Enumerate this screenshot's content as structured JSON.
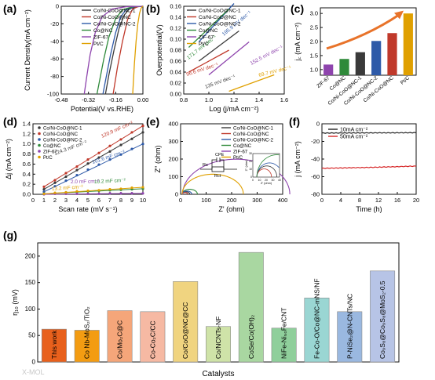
{
  "palette": {
    "CoNiCoO_NC_1": "#3a3a3a",
    "CoNiCoO_NC": "#c0392b",
    "CoNiCoO_NC_2": "#2e5aa8",
    "Co_NC": "#2f8a3a",
    "ZIF67": "#8e44ad",
    "PtC": "#e0a000",
    "accent_arrow": "#e8732a",
    "g_edge": "#8a8a8a"
  },
  "watermark": "X-MOL",
  "chart_data": [
    {
      "panel": "a",
      "type": "line",
      "xlabel": "Potential(V vs.RHE)",
      "ylabel": "Current Density(mA cm⁻²)",
      "xlim": [
        -0.48,
        0.0
      ],
      "ylim": [
        -100,
        0
      ],
      "xticks": [
        "-0.48",
        "-0.32",
        "-0.16",
        "0.00"
      ],
      "yticks": [
        "-100",
        "-80",
        "-60",
        "-40",
        "-20",
        "0"
      ],
      "legend_position": "top-right",
      "series": [
        {
          "name": "Co/Ni-CoO@NC-1",
          "color": "#3a3a3a",
          "points": [
            [
              0,
              0
            ],
            [
              -0.04,
              -0.5
            ],
            [
              -0.08,
              -3
            ],
            [
              -0.11,
              -10
            ],
            [
              -0.14,
              -25
            ],
            [
              -0.17,
              -50
            ],
            [
              -0.2,
              -78
            ],
            [
              -0.22,
              -100
            ]
          ]
        },
        {
          "name": "Co/Ni-CoO@NC",
          "color": "#c0392b",
          "points": [
            [
              0,
              0
            ],
            [
              -0.03,
              -0.5
            ],
            [
              -0.06,
              -3
            ],
            [
              -0.09,
              -15
            ],
            [
              -0.12,
              -40
            ],
            [
              -0.15,
              -70
            ],
            [
              -0.175,
              -100
            ]
          ]
        },
        {
          "name": "Co/Ni-CoO@NC-2",
          "color": "#2e5aa8",
          "points": [
            [
              0,
              0
            ],
            [
              -0.05,
              -0.5
            ],
            [
              -0.1,
              -4
            ],
            [
              -0.13,
              -12
            ],
            [
              -0.16,
              -30
            ],
            [
              -0.19,
              -55
            ],
            [
              -0.22,
              -85
            ],
            [
              -0.235,
              -100
            ]
          ]
        },
        {
          "name": "Co@NC",
          "color": "#2f8a3a",
          "points": [
            [
              0,
              0
            ],
            [
              -0.06,
              -0.5
            ],
            [
              -0.12,
              -4
            ],
            [
              -0.16,
              -14
            ],
            [
              -0.2,
              -35
            ],
            [
              -0.23,
              -60
            ],
            [
              -0.26,
              -90
            ],
            [
              -0.27,
              -100
            ]
          ]
        },
        {
          "name": "ZIF-67",
          "color": "#8e44ad",
          "points": [
            [
              0,
              0
            ],
            [
              -0.1,
              -0.5
            ],
            [
              -0.18,
              -3
            ],
            [
              -0.24,
              -12
            ],
            [
              -0.28,
              -30
            ],
            [
              -0.31,
              -55
            ],
            [
              -0.33,
              -80
            ],
            [
              -0.345,
              -100
            ]
          ]
        },
        {
          "name": "Pt/C",
          "color": "#e0a000",
          "points": [
            [
              0,
              0
            ],
            [
              -0.01,
              -2
            ],
            [
              -0.02,
              -8
            ],
            [
              -0.03,
              -20
            ],
            [
              -0.04,
              -40
            ],
            [
              -0.05,
              -65
            ],
            [
              -0.06,
              -100
            ]
          ]
        }
      ]
    },
    {
      "panel": "b",
      "type": "line",
      "xlabel": "Log (j/mA cm⁻²)",
      "ylabel": "Overpotential(V)",
      "xlim": [
        0.6,
        1.6
      ],
      "ylim": [
        0.0,
        0.16
      ],
      "xticks": [
        "0.8",
        "1.0",
        "1.2",
        "1.4",
        "1.6"
      ],
      "yticks": [
        "0.00",
        "0.02",
        "0.04",
        "0.06",
        "0.08",
        "0.10",
        "0.12",
        "0.14",
        "0.16"
      ],
      "legend_position": "top-left",
      "series": [
        {
          "name": "Co/Ni-CoO@NC-1",
          "color": "#3a3a3a",
          "points": [
            [
              0.75,
              0.06
            ],
            [
              1.15,
              0.115
            ]
          ],
          "label": "135 mV dec⁻¹"
        },
        {
          "name": "Co/Ni-CoO@NC",
          "color": "#c0392b",
          "points": [
            [
              0.65,
              0.04
            ],
            [
              1.05,
              0.08
            ]
          ],
          "label": "96.6 mV dec⁻¹"
        },
        {
          "name": "Co/Ni-CoO@NC-2",
          "color": "#2e5aa8",
          "points": [
            [
              0.75,
              0.095
            ],
            [
              1.1,
              0.165
            ]
          ],
          "label": "195.9 mV dec⁻¹"
        },
        {
          "name": "Co@NC",
          "color": "#2f8a3a",
          "points": [
            [
              0.65,
              0.085
            ],
            [
              1.05,
              0.155
            ]
          ],
          "label": "171.7 mV dec⁻¹"
        },
        {
          "name": "ZIF-67",
          "color": "#8e44ad",
          "points": [
            [
              0.85,
              0.035
            ],
            [
              1.25,
              0.095
            ]
          ],
          "label": "152.5 mV dec⁻¹"
        },
        {
          "name": "Pt/C",
          "color": "#e0a000",
          "points": [
            [
              1.05,
              0.005
            ],
            [
              1.5,
              0.035
            ]
          ],
          "label": "69.7 mV dec⁻¹"
        }
      ]
    },
    {
      "panel": "c",
      "type": "bar",
      "ylabel": "j꜀ (mA cm⁻²)",
      "ylim": [
        0.8,
        3.2
      ],
      "yticks": [
        "1.0",
        "1.5",
        "2.0",
        "2.5",
        "3.0"
      ],
      "categories": [
        "ZIF-67",
        "Co@NC",
        "Co/Ni-CoO@NC-1",
        "Co/Ni-CoO@NC-2",
        "Co/Ni-CoO@NC",
        "Pt/C"
      ],
      "values": [
        1.18,
        1.38,
        1.62,
        2.02,
        2.3,
        3.0
      ],
      "colors": [
        "#8e44ad",
        "#2f8a3a",
        "#3a3a3a",
        "#2e5aa8",
        "#c0392b",
        "#e0a000"
      ]
    },
    {
      "panel": "d",
      "type": "scatter",
      "xlabel": "Scan rate (mV s⁻¹)",
      "ylabel": "Δj (mA cm⁻²)",
      "xlim": [
        0,
        10
      ],
      "ylim": [
        0,
        1.4
      ],
      "xticks": [
        "0",
        "1",
        "2",
        "3",
        "4",
        "5",
        "6",
        "7",
        "8",
        "9",
        "10"
      ],
      "yticks": [
        "0.0",
        "0.2",
        "0.4",
        "0.6",
        "0.8",
        "1.0",
        "1.2",
        "1.4"
      ],
      "x": [
        1,
        2,
        3,
        4,
        5,
        6,
        7,
        8,
        9,
        10
      ],
      "legend_position": "top-left",
      "series": [
        {
          "name": "Co/Ni-CoO@NC-1",
          "color": "#3a3a3a",
          "values": [
            0.1,
            0.23,
            0.35,
            0.48,
            0.61,
            0.73,
            0.85,
            0.98,
            1.1,
            1.23
          ],
          "label": "124.3 mF cm⁻²"
        },
        {
          "name": "Co/Ni-CoO@NC",
          "color": "#c0392b",
          "values": [
            0.15,
            0.28,
            0.42,
            0.55,
            0.69,
            0.82,
            0.96,
            1.09,
            1.23,
            1.36
          ],
          "label": "120.9 mF cm⁻²"
        },
        {
          "name": "Co/Ni-CoO@NC-2",
          "color": "#2e5aa8",
          "values": [
            0.05,
            0.16,
            0.27,
            0.38,
            0.49,
            0.59,
            0.69,
            0.79,
            0.9,
            1.0
          ],
          "label": "101.6 mF cm⁻²"
        },
        {
          "name": "Co@NC",
          "color": "#2f8a3a",
          "values": [
            0.01,
            0.02,
            0.04,
            0.05,
            0.06,
            0.07,
            0.08,
            0.09,
            0.1,
            0.11
          ],
          "label": "10.2 mF cm⁻²"
        },
        {
          "name": "ZIF-67",
          "color": "#8e44ad",
          "values": [
            0.0,
            0.01,
            0.01,
            0.01,
            0.01,
            0.01,
            0.02,
            0.02,
            0.02,
            0.02
          ],
          "label": "2.0 mF cm⁻²"
        },
        {
          "name": "Pt/C",
          "color": "#e0a000",
          "values": [
            0.01,
            0.03,
            0.04,
            0.06,
            0.07,
            0.08,
            0.1,
            0.11,
            0.13,
            0.14
          ],
          "label": "13.2 mF cm⁻²"
        }
      ]
    },
    {
      "panel": "e",
      "type": "line",
      "xlabel": "Z' (ohm)",
      "ylabel": "Z'' (ohm)",
      "xlim": [
        0,
        400
      ],
      "ylim": [
        0,
        400
      ],
      "xticks": [
        "0",
        "100",
        "200",
        "300",
        "400"
      ],
      "yticks": [
        "0",
        "100",
        "200",
        "300",
        "400"
      ],
      "legend_position": "top-right",
      "circuit_labels": [
        "Rs",
        "CPE",
        "Rct"
      ],
      "series": [
        {
          "name": "Co/Ni-CoO@NC-1",
          "color": "#3a3a3a",
          "arc": [
            6,
            30
          ]
        },
        {
          "name": "Co/Ni-CoO@NC",
          "color": "#c0392b",
          "arc": [
            6,
            22
          ]
        },
        {
          "name": "Co/Ni-CoO@NC-2",
          "color": "#2e5aa8",
          "arc": [
            6,
            38
          ]
        },
        {
          "name": "Co@NC",
          "color": "#2f8a3a",
          "arc": [
            6,
            60
          ]
        },
        {
          "name": "ZIF-67",
          "color": "#8e44ad",
          "arc": [
            8,
            420
          ]
        },
        {
          "name": "Pt/C",
          "color": "#e0a000",
          "arc": [
            6,
            240
          ]
        }
      ],
      "inset": {
        "xlabel": "Z' (ohm)",
        "ylabel": "Z'' (ohm)",
        "xticks": [
          "0",
          "10",
          "20",
          "30",
          "40"
        ],
        "yticks": [
          "0",
          "10",
          "20",
          "30"
        ]
      }
    },
    {
      "panel": "f",
      "type": "line",
      "xlabel": "Time (h)",
      "ylabel": "j (mA cm⁻²)",
      "xlim": [
        0,
        20
      ],
      "ylim": [
        -80,
        0
      ],
      "xticks": [
        "0",
        "4",
        "8",
        "12",
        "16",
        "20"
      ],
      "yticks": [
        "-80",
        "-60",
        "-40",
        "-20",
        "0"
      ],
      "legend_position": "top-left",
      "series": [
        {
          "name": "10mA cm⁻²",
          "color": "#222222",
          "points": [
            [
              0,
              -10.5
            ],
            [
              5,
              -10.4
            ],
            [
              10,
              -10.3
            ],
            [
              15,
              -10.2
            ],
            [
              20,
              -10.1
            ]
          ]
        },
        {
          "name": "50mA cm⁻²",
          "color": "#d62728",
          "points": [
            [
              0,
              -50.5
            ],
            [
              5,
              -50.0
            ],
            [
              10,
              -49.5
            ],
            [
              15,
              -48.8
            ],
            [
              20,
              -48.0
            ]
          ]
        }
      ]
    },
    {
      "panel": "g",
      "type": "bar",
      "xlabel": "Catalysts",
      "ylabel": "η₁₀ (mV)",
      "ylim": [
        0,
        225
      ],
      "yticks": [
        "0",
        "50",
        "100",
        "150",
        "200"
      ],
      "categories": [
        "This work",
        "Co Nb-MoS₂/TiO₂",
        "Co/Mo₂C@C",
        "Co-Co₂C/CC",
        "Co/CoO@NC@CC",
        "Co/NCNTs-NF",
        "CoSe/Co(OH)₂",
        "NiFe-Ni₅₀Fe/CNT",
        "Fe-Co-O/Co@NC-mNS/NF",
        "P-NiSe₂@N-CNTs/NC",
        "Co₉S₈@Co₉S₈@MoS₂-0.5"
      ],
      "values": [
        62,
        60,
        97,
        95,
        152,
        67,
        207,
        64,
        121,
        95,
        172
      ],
      "colors": [
        "#e8601c",
        "#f39c12",
        "#f5a67a",
        "#f6b9a3",
        "#f0d480",
        "#cfe3a8",
        "#a9d7a1",
        "#8fcf9b",
        "#9ad6d3",
        "#9ab8e0",
        "#b7c4e6"
      ]
    }
  ]
}
